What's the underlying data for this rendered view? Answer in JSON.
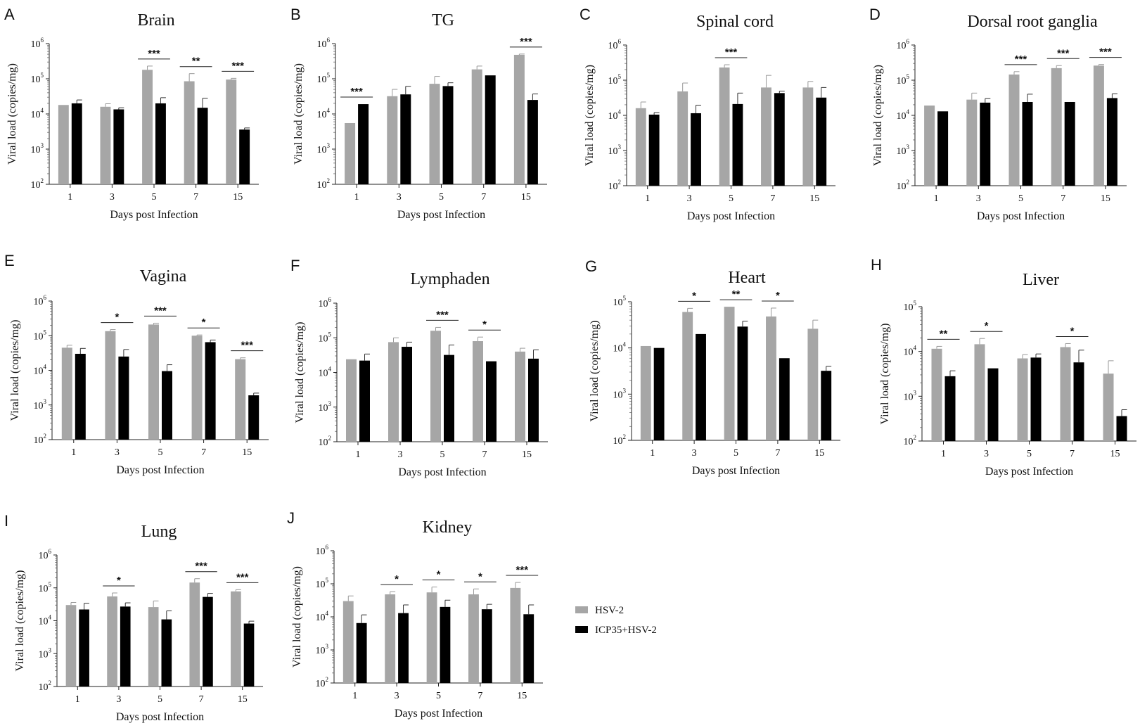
{
  "figure": {
    "legend": [
      {
        "label": "HSV-2",
        "color": "#a6a6a6"
      },
      {
        "label": "ICP35+HSV-2",
        "color": "#000000"
      }
    ]
  },
  "chart_data": [
    {
      "letter": "A",
      "type": "bar",
      "title": "Brain",
      "xlabel": "Days post Infection",
      "ylabel": "Viral load (copies/mg)",
      "ylim_exp": [
        2,
        6
      ],
      "categories": [
        "1",
        "3",
        "5",
        "7",
        "15"
      ],
      "series": [
        {
          "name": "HSV-2",
          "values": [
            18000,
            16000,
            180000,
            85000,
            95000
          ],
          "errors": [
            0,
            3500,
            50000,
            55000,
            8000
          ]
        },
        {
          "name": "ICP35+HSV-2",
          "values": [
            20000,
            13500,
            20000,
            15000,
            3600
          ],
          "errors": [
            5000,
            1500,
            9000,
            13000,
            400
          ]
        }
      ],
      "significance": [
        {
          "category": "5",
          "label": "***"
        },
        {
          "category": "7",
          "label": "**"
        },
        {
          "category": "15",
          "label": "***"
        }
      ]
    },
    {
      "letter": "B",
      "type": "bar",
      "title": "TG",
      "xlabel": "Days post Infection",
      "ylabel": "Viral load (copies/mg)",
      "ylim_exp": [
        2,
        6
      ],
      "categories": [
        "1",
        "3",
        "5",
        "7",
        "15"
      ],
      "series": [
        {
          "name": "HSV-2",
          "values": [
            5500,
            32000,
            72000,
            185000,
            480000
          ],
          "errors": [
            0,
            18000,
            45000,
            45000,
            25000
          ]
        },
        {
          "name": "ICP35+HSV-2",
          "values": [
            19000,
            36000,
            62000,
            125000,
            25000
          ],
          "errors": [
            0,
            25000,
            15000,
            0,
            12000
          ]
        }
      ],
      "significance": [
        {
          "category": "1",
          "label": "***"
        },
        {
          "category": "15",
          "label": "***"
        }
      ]
    },
    {
      "letter": "C",
      "type": "bar",
      "title": "Spinal cord",
      "xlabel": "Days post Infection",
      "ylabel": "Viral load (copies/mg)",
      "ylim_exp": [
        2,
        6
      ],
      "categories": [
        "1",
        "3",
        "5",
        "7",
        "15"
      ],
      "series": [
        {
          "name": "HSV-2",
          "values": [
            16000,
            48000,
            230000,
            62000,
            62000
          ],
          "errors": [
            8000,
            35000,
            45000,
            75000,
            30000
          ]
        },
        {
          "name": "ICP35+HSV-2",
          "values": [
            10500,
            11500,
            21000,
            43000,
            32000
          ],
          "errors": [
            1500,
            8000,
            22000,
            6000,
            30000
          ]
        }
      ],
      "significance": [
        {
          "category": "5",
          "label": "***"
        }
      ]
    },
    {
      "letter": "D",
      "type": "bar",
      "title": "Dorsal root ganglia",
      "xlabel": "Days post Infection",
      "ylabel": "Viral load (copies/mg)",
      "ylim_exp": [
        2,
        6
      ],
      "categories": [
        "1",
        "3",
        "5",
        "7",
        "15"
      ],
      "series": [
        {
          "name": "HSV-2",
          "values": [
            19000,
            28000,
            145000,
            220000,
            260000
          ],
          "errors": [
            0,
            15000,
            30000,
            40000,
            20000
          ]
        },
        {
          "name": "ICP35+HSV-2",
          "values": [
            13000,
            23000,
            24000,
            24000,
            31000
          ],
          "errors": [
            0,
            7000,
            16000,
            0,
            10000
          ]
        }
      ],
      "significance": [
        {
          "category": "5",
          "label": "***"
        },
        {
          "category": "7",
          "label": "***"
        },
        {
          "category": "15",
          "label": "***"
        }
      ]
    },
    {
      "letter": "E",
      "type": "bar",
      "title": "Vagina",
      "xlabel": "Days post Infection",
      "ylabel": "Viral load (copies/mg)",
      "ylim_exp": [
        2,
        6
      ],
      "categories": [
        "1",
        "3",
        "5",
        "7",
        "15"
      ],
      "series": [
        {
          "name": "HSV-2",
          "values": [
            45000,
            135000,
            210000,
            100000,
            21000
          ],
          "errors": [
            8000,
            15000,
            20000,
            5000,
            2000
          ]
        },
        {
          "name": "ICP35+HSV-2",
          "values": [
            30000,
            25000,
            9500,
            65000,
            1900
          ],
          "errors": [
            13000,
            15000,
            5000,
            10000,
            300
          ]
        }
      ],
      "significance": [
        {
          "category": "3",
          "label": "*"
        },
        {
          "category": "5",
          "label": "***"
        },
        {
          "category": "7",
          "label": "*"
        },
        {
          "category": "15",
          "label": "***"
        }
      ]
    },
    {
      "letter": "F",
      "type": "bar",
      "title": "Lymphaden",
      "xlabel": "Days post Infection",
      "ylabel": "Viral load (copies/mg)",
      "ylim_exp": [
        2,
        6
      ],
      "categories": [
        "1",
        "3",
        "5",
        "7",
        "15"
      ],
      "series": [
        {
          "name": "HSV-2",
          "values": [
            24000,
            75000,
            160000,
            80000,
            40000
          ],
          "errors": [
            0,
            25000,
            40000,
            25000,
            10000
          ]
        },
        {
          "name": "ICP35+HSV-2",
          "values": [
            22000,
            55000,
            32000,
            21000,
            25000
          ],
          "errors": [
            12000,
            20000,
            30000,
            0,
            20000
          ]
        }
      ],
      "significance": [
        {
          "category": "5",
          "label": "***"
        },
        {
          "category": "7",
          "label": "*"
        }
      ]
    },
    {
      "letter": "G",
      "type": "bar",
      "title": "Heart",
      "xlabel": "Days post Infection",
      "ylabel": "Viral load (copies/mg)",
      "ylim_exp": [
        2,
        5
      ],
      "categories": [
        "1",
        "3",
        "5",
        "7",
        "15"
      ],
      "series": [
        {
          "name": "HSV-2",
          "values": [
            11000,
            60000,
            78000,
            48000,
            26000
          ],
          "errors": [
            0,
            12000,
            0,
            25000,
            14000
          ]
        },
        {
          "name": "ICP35+HSV-2",
          "values": [
            10000,
            20000,
            29000,
            6000,
            3200
          ],
          "errors": [
            0,
            0,
            9000,
            0,
            800
          ]
        }
      ],
      "significance": [
        {
          "category": "3",
          "label": "*"
        },
        {
          "category": "5",
          "label": "**"
        },
        {
          "category": "7",
          "label": "*"
        }
      ]
    },
    {
      "letter": "H",
      "type": "bar",
      "title": "Liver",
      "xlabel": "Days post Infection",
      "ylabel": "Viral load (copies/mg)",
      "ylim_exp": [
        2,
        5
      ],
      "categories": [
        "1",
        "3",
        "5",
        "7",
        "15"
      ],
      "series": [
        {
          "name": "HSV-2",
          "values": [
            11500,
            14500,
            7000,
            12500,
            3200
          ],
          "errors": [
            1500,
            5000,
            1500,
            2500,
            3000
          ]
        },
        {
          "name": "ICP35+HSV-2",
          "values": [
            2800,
            4200,
            7300,
            5700,
            360
          ],
          "errors": [
            900,
            0,
            1500,
            5000,
            140
          ]
        }
      ],
      "significance": [
        {
          "category": "1",
          "label": "**"
        },
        {
          "category": "3",
          "label": "*"
        },
        {
          "category": "7",
          "label": "*"
        }
      ]
    },
    {
      "letter": "I",
      "type": "bar",
      "title": "Lung",
      "xlabel": "Days post Infection",
      "ylabel": "Viral load (copies/mg)",
      "ylim_exp": [
        2,
        6
      ],
      "categories": [
        "1",
        "3",
        "5",
        "7",
        "15"
      ],
      "series": [
        {
          "name": "HSV-2",
          "values": [
            30000,
            55000,
            26000,
            145000,
            78000
          ],
          "errors": [
            6000,
            15000,
            14000,
            45000,
            10000
          ]
        },
        {
          "name": "ICP35+HSV-2",
          "values": [
            22000,
            27000,
            11000,
            53000,
            8200
          ],
          "errors": [
            12000,
            8000,
            9000,
            15000,
            1500
          ]
        }
      ],
      "significance": [
        {
          "category": "3",
          "label": "*"
        },
        {
          "category": "7",
          "label": "***"
        },
        {
          "category": "15",
          "label": "***"
        }
      ]
    },
    {
      "letter": "J",
      "type": "bar",
      "title": "Kidney",
      "xlabel": "Days post Infection",
      "ylabel": "Viral load (copies/mg)",
      "ylim_exp": [
        2,
        6
      ],
      "categories": [
        "1",
        "3",
        "5",
        "7",
        "15"
      ],
      "series": [
        {
          "name": "HSV-2",
          "values": [
            30000,
            48000,
            55000,
            48000,
            75000
          ],
          "errors": [
            13000,
            10000,
            25000,
            22000,
            35000
          ]
        },
        {
          "name": "ICP35+HSV-2",
          "values": [
            6500,
            13000,
            20000,
            17000,
            12000
          ],
          "errors": [
            5000,
            10000,
            12000,
            7000,
            11000
          ]
        }
      ],
      "significance": [
        {
          "category": "3",
          "label": "*"
        },
        {
          "category": "5",
          "label": "*"
        },
        {
          "category": "7",
          "label": "*"
        },
        {
          "category": "15",
          "label": "***"
        }
      ]
    }
  ]
}
